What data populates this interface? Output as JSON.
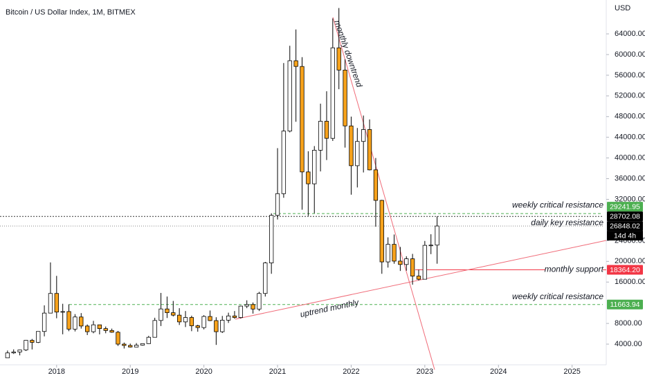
{
  "chart_data": {
    "type": "candlestick",
    "title": "Bitcoin / US Dollar Index, 1M, BITMEX",
    "currency": "USD",
    "x": [
      "2017-05",
      "2017-06",
      "2017-07",
      "2017-08",
      "2017-09",
      "2017-10",
      "2017-11",
      "2017-12",
      "2018-01",
      "2018-02",
      "2018-03",
      "2018-04",
      "2018-05",
      "2018-06",
      "2018-07",
      "2018-08",
      "2018-09",
      "2018-10",
      "2018-11",
      "2018-12",
      "2019-01",
      "2019-02",
      "2019-03",
      "2019-04",
      "2019-05",
      "2019-06",
      "2019-07",
      "2019-08",
      "2019-09",
      "2019-10",
      "2019-11",
      "2019-12",
      "2020-01",
      "2020-02",
      "2020-03",
      "2020-04",
      "2020-05",
      "2020-06",
      "2020-07",
      "2020-08",
      "2020-09",
      "2020-10",
      "2020-11",
      "2020-12",
      "2021-01",
      "2021-02",
      "2021-03",
      "2021-04",
      "2021-05",
      "2021-06",
      "2021-07",
      "2021-08",
      "2021-09",
      "2021-10",
      "2021-11",
      "2021-12",
      "2022-01",
      "2022-02",
      "2022-03",
      "2022-04",
      "2022-05",
      "2022-06",
      "2022-07",
      "2022-08",
      "2022-09",
      "2022-10",
      "2022-11",
      "2022-12",
      "2023-01",
      "2023-02",
      "2023-03"
    ],
    "open": [
      1350,
      2300,
      2480,
      2870,
      4730,
      4340,
      6450,
      10000,
      13800,
      10200,
      10300,
      6900,
      9250,
      7500,
      6400,
      7730,
      7000,
      6630,
      6300,
      4000,
      3740,
      3440,
      3800,
      4100,
      5320,
      8570,
      10800,
      10080,
      9600,
      8300,
      9150,
      7550,
      7200,
      9350,
      8550,
      6400,
      8630,
      9450,
      9140,
      11350,
      11650,
      10780,
      13800,
      19700,
      28900,
      33100,
      45200,
      58800,
      57700,
      37300,
      35000,
      41500,
      47100,
      43800,
      61300,
      57000,
      46200,
      38500,
      43200,
      45500,
      37700,
      31800,
      19900,
      23300,
      20050,
      19400,
      20500,
      17150,
      16550,
      23100,
      23150
    ],
    "high": [
      2760,
      2980,
      2920,
      4740,
      5000,
      6470,
      11500,
      19800,
      17200,
      11800,
      11700,
      9800,
      10000,
      7800,
      8500,
      7760,
      7400,
      7000,
      6550,
      4300,
      4100,
      4200,
      4150,
      5600,
      9100,
      13900,
      13200,
      12350,
      10950,
      10400,
      9500,
      7750,
      9600,
      10500,
      9200,
      9450,
      10080,
      10400,
      11450,
      12470,
      12050,
      14100,
      19900,
      29300,
      41900,
      58350,
      61700,
      64850,
      59500,
      41300,
      42300,
      50500,
      52900,
      67000,
      69000,
      59100,
      48000,
      45800,
      48200,
      47450,
      40000,
      31900,
      24650,
      25200,
      22800,
      21000,
      21450,
      18400,
      23950,
      25250,
      28700
    ],
    "low": [
      1350,
      2100,
      1830,
      2670,
      2970,
      4200,
      5500,
      10000,
      9000,
      5900,
      6500,
      6450,
      7000,
      5750,
      6100,
      5880,
      6100,
      6200,
      3650,
      3150,
      3350,
      3400,
      3700,
      4050,
      5300,
      7500,
      9050,
      9350,
      7700,
      7300,
      6500,
      6400,
      6850,
      8450,
      3850,
      6150,
      8100,
      8900,
      8950,
      10950,
      9900,
      10400,
      13200,
      17600,
      28100,
      32300,
      44950,
      47000,
      30000,
      28800,
      29300,
      37400,
      39600,
      43300,
      53300,
      42000,
      32900,
      34300,
      37200,
      37600,
      26700,
      17600,
      18800,
      19550,
      18150,
      18200,
      15500,
      16300,
      16500,
      21400,
      19550
    ],
    "close": [
      2300,
      2480,
      2870,
      4730,
      4340,
      6450,
      10000,
      13800,
      10200,
      10300,
      6900,
      9250,
      7500,
      6400,
      7730,
      7000,
      6630,
      6300,
      4000,
      3740,
      3440,
      3800,
      4100,
      5320,
      8570,
      10800,
      10080,
      9600,
      8300,
      9150,
      7550,
      7200,
      9350,
      8550,
      6400,
      8630,
      9450,
      9140,
      11350,
      11650,
      10780,
      13800,
      19700,
      28900,
      33100,
      45200,
      58800,
      57700,
      37300,
      35000,
      41500,
      47100,
      43800,
      61300,
      57000,
      46200,
      38500,
      43200,
      45500,
      37700,
      31800,
      19900,
      23300,
      20050,
      19400,
      20500,
      17150,
      16550,
      23100,
      23150,
      26848
    ],
    "up_color": "#ffffff",
    "down_color": "#f7a21b",
    "xlim": [
      "2017-04",
      "2025-06"
    ],
    "xticks": [
      {
        "value": "2018-01",
        "label": "2018"
      },
      {
        "value": "2019-01",
        "label": "2019"
      },
      {
        "value": "2020-01",
        "label": "2020"
      },
      {
        "value": "2021-01",
        "label": "2021"
      },
      {
        "value": "2022-01",
        "label": "2022"
      },
      {
        "value": "2023-01",
        "label": "2023"
      },
      {
        "value": "2024-01",
        "label": "2024"
      },
      {
        "value": "2025-01",
        "label": "2025"
      }
    ],
    "ylim": [
      0,
      70550
    ],
    "yticks": [
      {
        "value": 4000,
        "label": "4000.00"
      },
      {
        "value": 8000,
        "label": "8000.00"
      },
      {
        "value": 16000,
        "label": "16000.00"
      },
      {
        "value": 20000,
        "label": "20000.00"
      },
      {
        "value": 24000,
        "label": "24000.00"
      },
      {
        "value": 32000,
        "label": "32000.00"
      },
      {
        "value": 36000,
        "label": "36000.00"
      },
      {
        "value": 40000,
        "label": "40000.00"
      },
      {
        "value": 44000,
        "label": "44000.00"
      },
      {
        "value": 48000,
        "label": "48000.00"
      },
      {
        "value": 52000,
        "label": "52000.00"
      },
      {
        "value": 56000,
        "label": "56000.00"
      },
      {
        "value": 60000,
        "label": "60000.00"
      },
      {
        "value": 64000,
        "label": "64000.00"
      }
    ],
    "levels": [
      {
        "text": "weekly critical resistance",
        "value": 29241.95,
        "value_label": "29241.95",
        "color": "#4caf50"
      },
      {
        "value": 28702.08,
        "value_label": "28702.08",
        "color": "#000000"
      },
      {
        "text": "daily key resistance",
        "value": 26848.02,
        "value_label": "26848.02",
        "color": "#000000",
        "countdown": "14d 4h"
      },
      {
        "text": "monthly support",
        "value": 18364.2,
        "value_label": "18364.20",
        "color": "#f23645"
      },
      {
        "text": "weekly critical resistance",
        "value": 11663.94,
        "value_label": "11663.94",
        "color": "#4caf50"
      }
    ],
    "annotations": [
      "monthly downtrend",
      "uptrend monthly"
    ]
  }
}
